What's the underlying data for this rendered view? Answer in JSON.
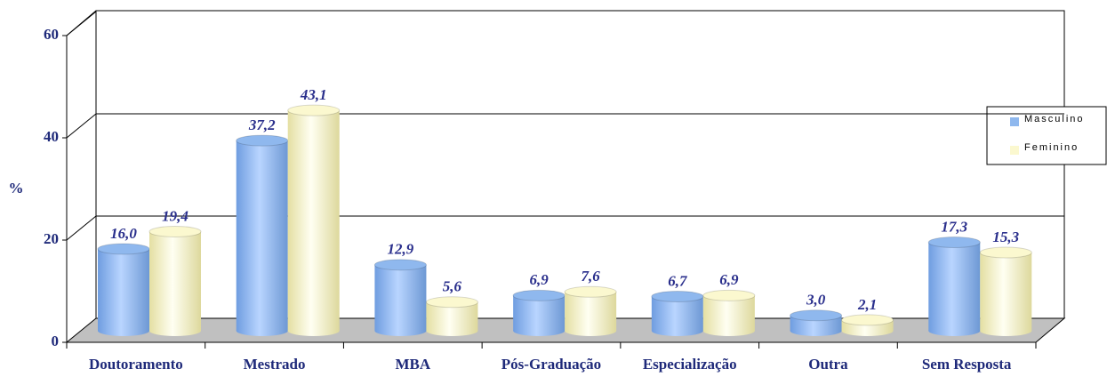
{
  "chart_data": {
    "type": "bar",
    "y_label": "%",
    "categories": [
      "Doutoramento",
      "Mestrado",
      "MBA",
      "Pós-Graduação",
      "Especialização",
      "Outra",
      "Sem Resposta"
    ],
    "series": [
      {
        "name": "Masculino",
        "color": "#8fb8ee",
        "values": [
          16.0,
          37.2,
          12.9,
          6.9,
          6.7,
          3.0,
          17.3
        ],
        "value_labels": [
          "16,0",
          "37,2",
          "12,9",
          "6,9",
          "6,7",
          "3,0",
          "17,3"
        ]
      },
      {
        "name": "Feminino",
        "color": "#fbf8cf",
        "values": [
          19.4,
          43.1,
          5.6,
          7.6,
          6.9,
          2.1,
          15.3
        ],
        "value_labels": [
          "19,4",
          "43,1",
          "5,6",
          "7,6",
          "6,9",
          "2,1",
          "15,3"
        ]
      }
    ],
    "ylim": [
      0,
      60
    ],
    "yticks": [
      0,
      20,
      40,
      60
    ],
    "grid": true,
    "legend": "right"
  }
}
